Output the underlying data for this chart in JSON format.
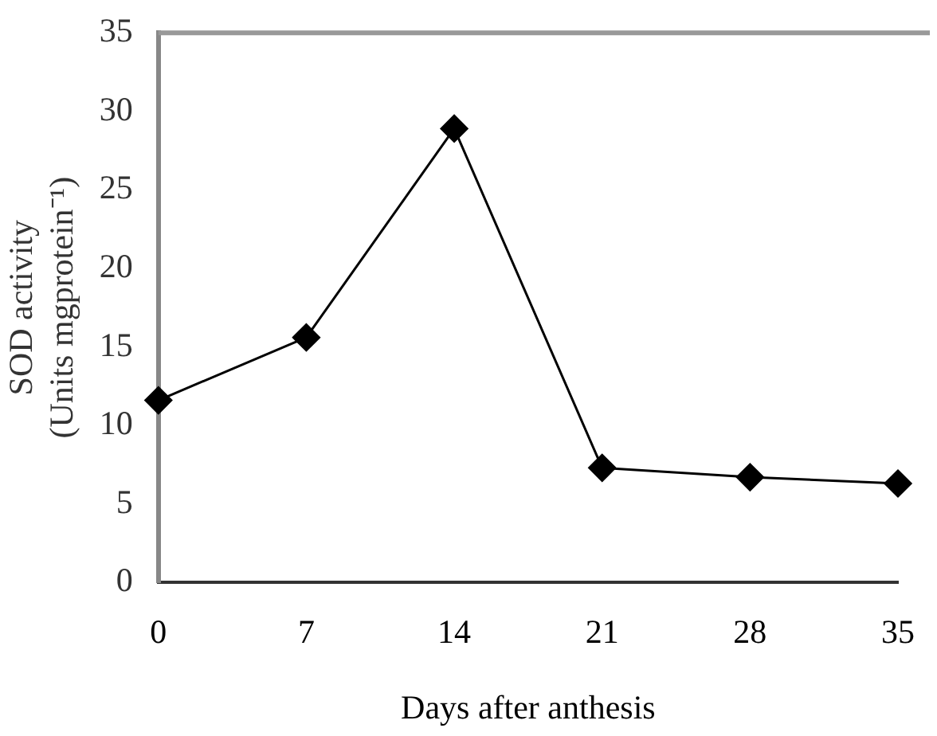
{
  "chart_data": {
    "type": "line",
    "xlabel": "Days after anthesis",
    "ylabel": "SOD activity\n(Units mgprotein⁻¹)",
    "x": [
      0,
      7,
      14,
      21,
      28,
      35
    ],
    "series": [
      {
        "color": "#000000",
        "values": [
          11.6,
          15.6,
          28.9,
          7.3,
          6.7,
          6.3
        ]
      }
    ],
    "xlim": [
      0,
      35
    ],
    "xticks": [
      0,
      7,
      14,
      21,
      28,
      35
    ],
    "ylim": [
      0,
      35
    ],
    "yticks": [
      0,
      5,
      10,
      15,
      20,
      25,
      30,
      35
    ],
    "marker": "diamond",
    "line_style": "solid",
    "grid": false,
    "legend": false
  }
}
